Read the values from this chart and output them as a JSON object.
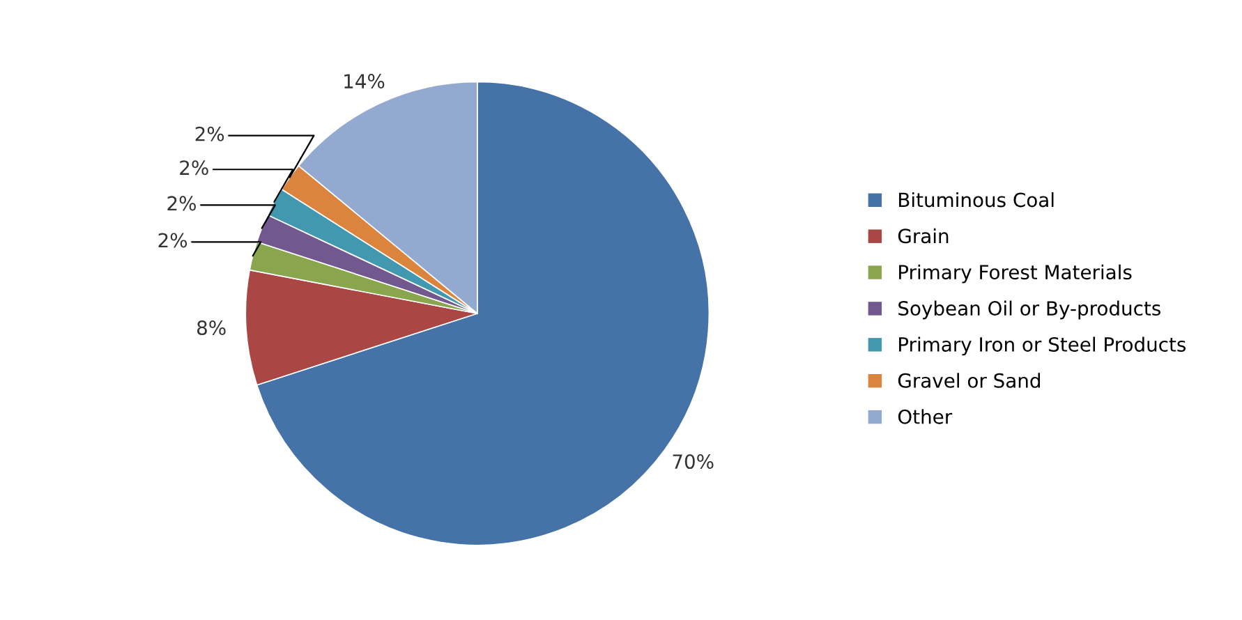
{
  "chart_data": {
    "type": "pie",
    "categories": [
      "Bituminous Coal",
      "Grain",
      "Primary Forest Materials",
      "Soybean Oil or By-products",
      "Primary Iron or Steel Products",
      "Gravel or Sand",
      "Other"
    ],
    "values": [
      70,
      8,
      2,
      2,
      2,
      2,
      14
    ],
    "colors": [
      "#4572a7",
      "#aa4643",
      "#89a54e",
      "#71588f",
      "#4198af",
      "#db843d",
      "#93a9cf"
    ],
    "value_labels": [
      "70%",
      "8%",
      "2%",
      "2%",
      "2%",
      "2%",
      "14%"
    ],
    "legend": "right"
  }
}
